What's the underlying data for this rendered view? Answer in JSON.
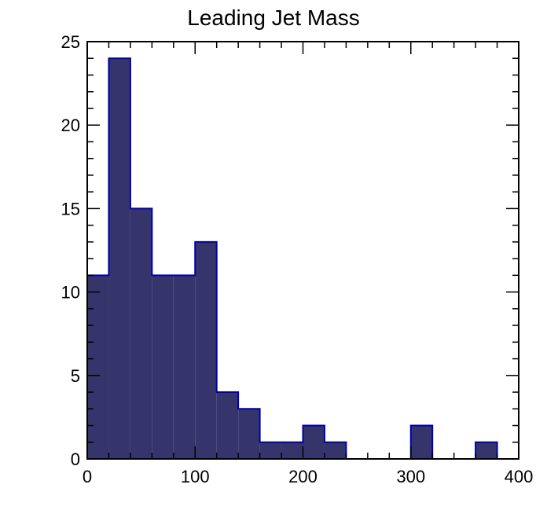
{
  "chart_data": {
    "type": "bar",
    "title": "Leading Jet Mass",
    "xlabel": "",
    "ylabel": "",
    "xlim": [
      0,
      400
    ],
    "ylim": [
      0,
      25
    ],
    "x_ticks": [
      "0",
      "100",
      "200",
      "300",
      "400"
    ],
    "y_ticks": [
      "0",
      "5",
      "10",
      "15",
      "20",
      "25"
    ],
    "bin_edges": [
      0,
      20,
      40,
      60,
      80,
      100,
      120,
      140,
      160,
      180,
      200,
      220,
      240,
      260,
      280,
      300,
      320,
      340,
      360,
      380,
      400
    ],
    "values": [
      11,
      24,
      15,
      11,
      11,
      13,
      4,
      3,
      1,
      1,
      2,
      1,
      0,
      0,
      0,
      2,
      0,
      0,
      1,
      0
    ],
    "fill_color": "#35356b",
    "line_color": "#0000aa",
    "grid": false,
    "legend": "none"
  }
}
